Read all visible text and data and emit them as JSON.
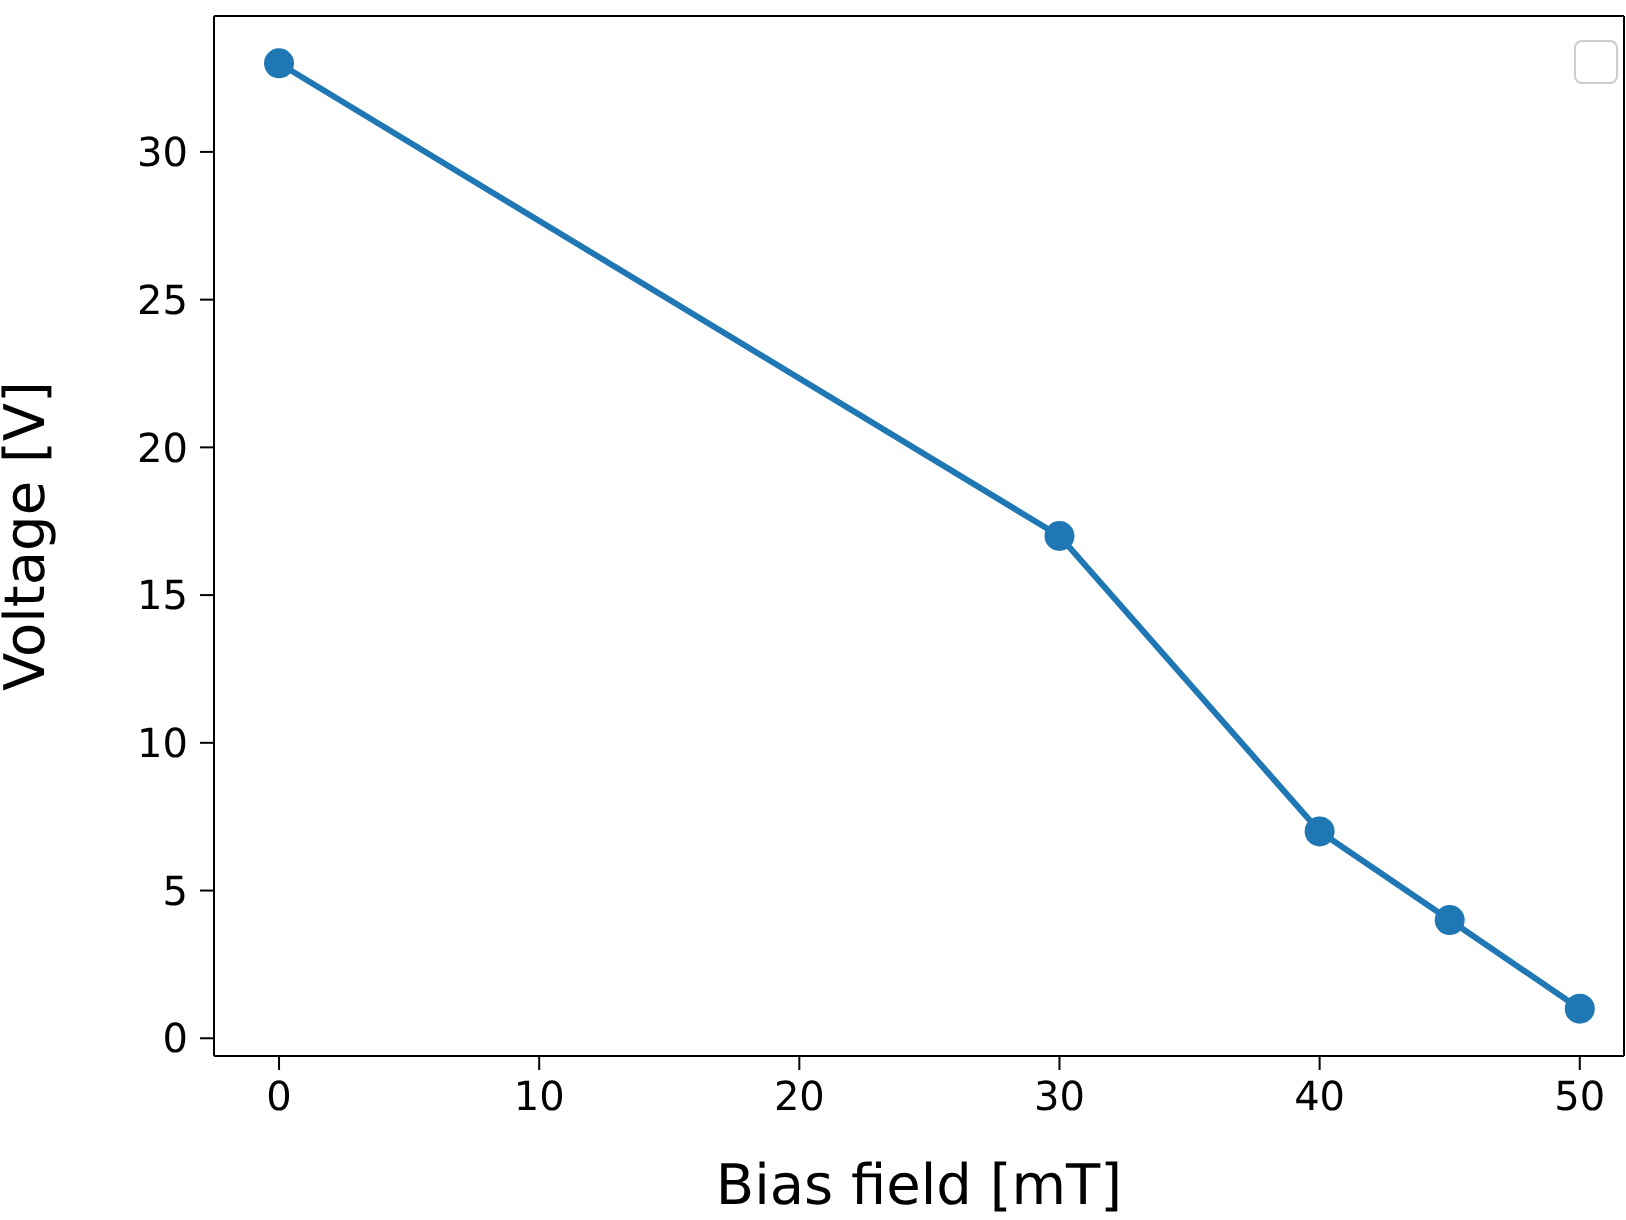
{
  "chart_data": {
    "type": "line",
    "xlabel": "Bias field [mT]",
    "ylabel": "Voltage [V]",
    "x": [
      0,
      30,
      40,
      45,
      50
    ],
    "series": [
      {
        "color": "#1f77b4",
        "values": [
          33,
          17,
          7,
          4,
          1
        ]
      }
    ],
    "xlim": [
      -2.5,
      51.7
    ],
    "ylim": [
      -0.6,
      34.6
    ],
    "xticks": [
      0,
      10,
      20,
      30,
      40,
      50
    ],
    "yticks": [
      0,
      5,
      10,
      15,
      20,
      25,
      30
    ],
    "marker": "circle",
    "line_style": "solid",
    "grid": false
  }
}
